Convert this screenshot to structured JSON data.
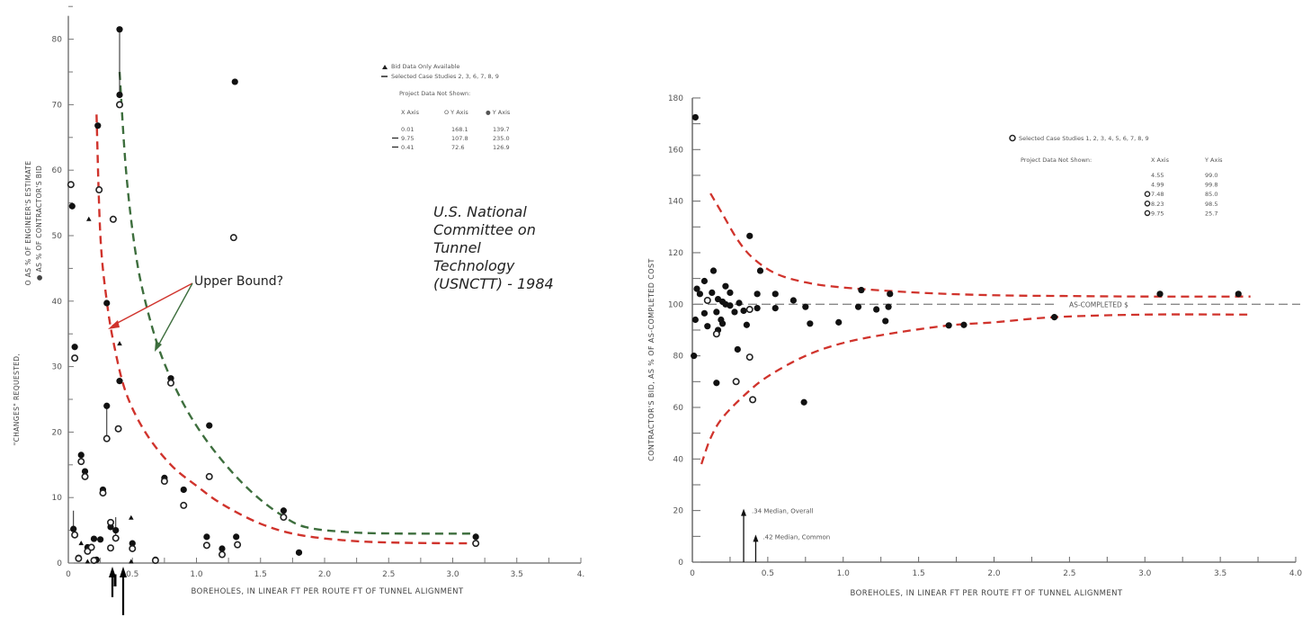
{
  "chart_data": [
    {
      "type": "scatter",
      "title": "",
      "xlabel": "BOREHOLES, IN LINEAR FT PER ROUTE FT OF TUNNEL ALIGNMENT",
      "ylabel_lines": [
        "\"CHANGES\" REQUESTED,",
        "O AS % OF ENGINEER'S ESTIMATE",
        "● AS % OF CONTRACTOR'S BID"
      ],
      "xlim": [
        0,
        4.0
      ],
      "ylim": [
        0,
        80
      ],
      "x_ticks": [
        "0",
        "0.5",
        "1.0",
        "1.5",
        "2.0",
        "2.5",
        "3.0",
        "3.5",
        "4."
      ],
      "x_tick_values": [
        0,
        0.5,
        1.0,
        1.5,
        2.0,
        2.5,
        3.0,
        3.5,
        4.0
      ],
      "y_ticks": [
        "0",
        "10",
        "20",
        "30",
        "40",
        "50",
        "60",
        "70",
        "80"
      ],
      "y_tick_values": [
        0,
        10,
        20,
        30,
        40,
        50,
        60,
        70,
        80
      ],
      "grid": false,
      "legend": {
        "position": "top-right",
        "entries": [
          "Bid Data Only Available",
          "Selected Case Studies 2, 3, 6, 7, 8, 9"
        ],
        "not_shown_title": "Project Data Not Shown:",
        "not_shown_headers": [
          "X Axis",
          "O Y Axis",
          "● Y Axis"
        ],
        "not_shown_rows": [
          [
            "0.01",
            "168.1",
            "139.7"
          ],
          [
            "9.75",
            "107.8",
            "235.0"
          ],
          [
            "0.41",
            "72.6",
            "126.9"
          ]
        ]
      },
      "series": [
        {
          "name": "As % of Contractor's Bid (filled)",
          "marker": "filled-circle",
          "points": [
            [
              0.4,
              81.5
            ],
            [
              0.4,
              71.5
            ],
            [
              0.23,
              66.8
            ],
            [
              0.03,
              54.5
            ],
            [
              0.3,
              39.7
            ],
            [
              0.05,
              33
            ],
            [
              0.4,
              27.8
            ],
            [
              0.8,
              28.2
            ],
            [
              0.3,
              24
            ],
            [
              1.1,
              21
            ],
            [
              0.1,
              16.5
            ],
            [
              0.13,
              14
            ],
            [
              0.75,
              13
            ],
            [
              0.27,
              11.2
            ],
            [
              0.9,
              11.2
            ],
            [
              0.04,
              5.2
            ],
            [
              0.33,
              5.5
            ],
            [
              1.3,
              73.5
            ],
            [
              1.08,
              4.0
            ],
            [
              1.2,
              2.2
            ],
            [
              1.31,
              4.0
            ],
            [
              1.68,
              8.0
            ],
            [
              1.8,
              1.6
            ],
            [
              3.18,
              4.0
            ],
            [
              0.5,
              3.0
            ],
            [
              0.15,
              2.4
            ],
            [
              0.2,
              3.7
            ],
            [
              0.25,
              3.6
            ],
            [
              0.08,
              0.8
            ],
            [
              0.68,
              0.5
            ],
            [
              0.22,
              0.5
            ],
            [
              0.37,
              5.0
            ]
          ]
        },
        {
          "name": "As % of Engineer's Estimate (open)",
          "marker": "open-circle",
          "points": [
            [
              0.4,
              70
            ],
            [
              0.24,
              57
            ],
            [
              0.02,
              57.8
            ],
            [
              0.35,
              52.5
            ],
            [
              1.29,
              49.7
            ],
            [
              0.05,
              31.3
            ],
            [
              0.8,
              27.5
            ],
            [
              0.39,
              20.5
            ],
            [
              0.3,
              19
            ],
            [
              0.1,
              15.5
            ],
            [
              0.13,
              13.2
            ],
            [
              0.75,
              12.5
            ],
            [
              0.27,
              10.7
            ],
            [
              1.1,
              13.2
            ],
            [
              0.9,
              8.8
            ],
            [
              0.05,
              4.3
            ],
            [
              0.33,
              6.2
            ],
            [
              0.37,
              3.8
            ],
            [
              0.15,
              1.8
            ],
            [
              0.18,
              2.4
            ],
            [
              0.5,
              2.2
            ],
            [
              1.08,
              2.7
            ],
            [
              1.2,
              1.3
            ],
            [
              1.32,
              2.8
            ],
            [
              1.68,
              7.0
            ],
            [
              3.18,
              3.0
            ],
            [
              0.33,
              2.3
            ],
            [
              0.08,
              0.7
            ],
            [
              0.68,
              0.4
            ],
            [
              0.2,
              0.4
            ]
          ]
        },
        {
          "name": "Bid Data Only Available (triangle)",
          "marker": "triangle",
          "points": [
            [
              0.16,
              52.5
            ],
            [
              0.4,
              33.5
            ],
            [
              0.49,
              6.9
            ],
            [
              0.1,
              3.0
            ],
            [
              0.49,
              0.2
            ],
            [
              0.15,
              0.2
            ]
          ]
        }
      ],
      "curves": [
        {
          "name": "Upper bound (red dashed)",
          "color": "#d0332c",
          "points": [
            [
              0.22,
              68.5
            ],
            [
              0.25,
              50
            ],
            [
              0.3,
              40
            ],
            [
              0.36,
              33
            ],
            [
              0.45,
              26
            ],
            [
              0.6,
              20
            ],
            [
              0.8,
              15
            ],
            [
              1.0,
              11.8
            ],
            [
              1.2,
              9
            ],
            [
              1.5,
              6
            ],
            [
              1.8,
              4.3
            ],
            [
              2.2,
              3.4
            ],
            [
              2.6,
              3.1
            ],
            [
              3.18,
              3.0
            ]
          ]
        },
        {
          "name": "Upper bound (green dashed)",
          "color": "#3d6e3d",
          "points": [
            [
              0.4,
              75
            ],
            [
              0.45,
              60
            ],
            [
              0.52,
              48
            ],
            [
              0.6,
              40
            ],
            [
              0.72,
              32
            ],
            [
              0.88,
              25
            ],
            [
              1.05,
              19.5
            ],
            [
              1.25,
              14.5
            ],
            [
              1.45,
              10.5
            ],
            [
              1.65,
              7.5
            ],
            [
              1.85,
              5.5
            ],
            [
              2.2,
              4.7
            ],
            [
              2.6,
              4.5
            ],
            [
              3.18,
              4.5
            ]
          ]
        }
      ],
      "annotations": {
        "upper_bound_label": "Upper Bound?",
        "source_note": [
          "U.S. National",
          "Committee on",
          "Tunnel",
          "Technology",
          "(USNCTT) - 1984"
        ]
      }
    },
    {
      "type": "scatter",
      "title": "",
      "xlabel": "BOREHOLES, IN LINEAR FT PER ROUTE FT OF TUNNEL ALIGNMENT",
      "ylabel": "CONTRACTOR'S BID, AS % OF AS-COMPLETED COST",
      "xlim": [
        0,
        4.0
      ],
      "ylim": [
        0,
        180
      ],
      "x_ticks": [
        "0",
        "0.5",
        "1.0",
        "1.5",
        "2.0",
        "2.5",
        "3.0",
        "3.5",
        "4.0"
      ],
      "x_tick_values": [
        0,
        0.5,
        1.0,
        1.5,
        2.0,
        2.5,
        3.0,
        3.5,
        4.0
      ],
      "y_ticks": [
        "0",
        "20",
        "40",
        "60",
        "80",
        "100",
        "120",
        "140",
        "160",
        "180"
      ],
      "y_tick_values": [
        0,
        20,
        40,
        60,
        80,
        100,
        120,
        140,
        160,
        180
      ],
      "grid": false,
      "reference_line": {
        "label": "AS-COMPLETED $",
        "y": 100
      },
      "medians": [
        {
          "label": ".34 Median, Overall",
          "x": 0.34,
          "y_top": 20
        },
        {
          "label": ".42 Median, Common",
          "x": 0.42,
          "y_top": 10
        }
      ],
      "legend": {
        "position": "top-right",
        "entries": [
          "Selected Case Studies 1, 2, 3, 4, 5, 6, 7, 8, 9"
        ],
        "not_shown_title": "Project Data Not Shown:",
        "not_shown_headers": [
          "X Axis",
          "Y Axis"
        ],
        "not_shown_rows": [
          [
            "4.55",
            "99.0"
          ],
          [
            "4.99",
            "99.8"
          ],
          [
            "O 7.48",
            "85.0"
          ],
          [
            "O 8.23",
            "98.5"
          ],
          [
            "O 9.75",
            "25.7"
          ]
        ]
      },
      "series": [
        {
          "name": "Projects (filled)",
          "marker": "filled-circle",
          "points": [
            [
              0.02,
              172.5
            ],
            [
              0.14,
              113
            ],
            [
              0.08,
              109
            ],
            [
              0.03,
              106
            ],
            [
              0.05,
              104
            ],
            [
              0.13,
              104.5
            ],
            [
              0.17,
              102
            ],
            [
              0.2,
              101
            ],
            [
              0.22,
              100
            ],
            [
              0.25,
              99.5
            ],
            [
              0.1,
              101.5
            ],
            [
              0.16,
              97
            ],
            [
              0.08,
              96.5
            ],
            [
              0.02,
              94
            ],
            [
              0.1,
              91.5
            ],
            [
              0.19,
              94
            ],
            [
              0.28,
              97
            ],
            [
              0.22,
              107
            ],
            [
              0.25,
              104.5
            ],
            [
              0.31,
              100.5
            ],
            [
              0.34,
              97.5
            ],
            [
              0.17,
              90
            ],
            [
              0.2,
              92.5
            ],
            [
              0.36,
              92
            ],
            [
              0.3,
              82.5
            ],
            [
              0.01,
              80
            ],
            [
              0.16,
              69.5
            ],
            [
              0.43,
              104
            ],
            [
              0.55,
              104
            ],
            [
              0.43,
              98.5
            ],
            [
              0.55,
              98.5
            ],
            [
              0.67,
              101.5
            ],
            [
              0.78,
              92.5
            ],
            [
              0.75,
              99
            ],
            [
              0.97,
              93
            ],
            [
              0.74,
              62
            ],
            [
              0.45,
              113
            ],
            [
              1.1,
              99
            ],
            [
              1.12,
              105.5
            ],
            [
              1.22,
              98
            ],
            [
              1.28,
              93.5
            ],
            [
              1.3,
              99
            ],
            [
              1.31,
              104
            ],
            [
              1.7,
              91.8
            ],
            [
              1.8,
              92
            ],
            [
              2.4,
              95
            ],
            [
              3.1,
              104
            ],
            [
              3.62,
              104
            ],
            [
              0.38,
              126.5
            ]
          ]
        },
        {
          "name": "Selected Case Studies (open)",
          "marker": "open-circle",
          "points": [
            [
              0.1,
              101.5
            ],
            [
              0.16,
              88.5
            ],
            [
              0.38,
              98
            ],
            [
              0.38,
              79.5
            ],
            [
              0.29,
              70
            ],
            [
              0.4,
              63
            ]
          ]
        }
      ],
      "curves": [
        {
          "name": "Upper envelope (red dashed)",
          "color": "#d0332c",
          "points": [
            [
              0.12,
              143
            ],
            [
              0.2,
              135
            ],
            [
              0.3,
              125
            ],
            [
              0.4,
              118
            ],
            [
              0.55,
              112
            ],
            [
              0.75,
              108.5
            ],
            [
              1.0,
              106.5
            ],
            [
              1.5,
              104.5
            ],
            [
              2.0,
              103.5
            ],
            [
              2.5,
              103.2
            ],
            [
              3.0,
              103
            ],
            [
              3.7,
              103
            ]
          ]
        },
        {
          "name": "Lower envelope (red dashed)",
          "color": "#d0332c",
          "points": [
            [
              0.06,
              38
            ],
            [
              0.12,
              48
            ],
            [
              0.2,
              56
            ],
            [
              0.35,
              65
            ],
            [
              0.5,
              72
            ],
            [
              0.75,
              80
            ],
            [
              1.0,
              85
            ],
            [
              1.3,
              88.5
            ],
            [
              1.7,
              91.8
            ],
            [
              2.0,
              93
            ],
            [
              2.4,
              95
            ],
            [
              3.0,
              96
            ],
            [
              3.7,
              96
            ]
          ]
        }
      ]
    }
  ]
}
